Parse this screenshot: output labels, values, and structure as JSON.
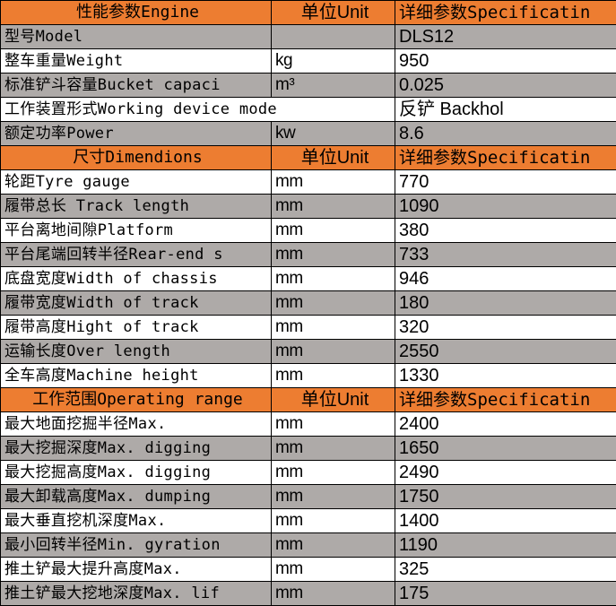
{
  "colors": {
    "header": "#ED7D31",
    "grey_row": "#AEAAA8",
    "white_row": "#FFFFFF"
  },
  "sections": [
    {
      "header": [
        "性能参数Engine",
        "单位Unit",
        "详细参数Specificatin"
      ],
      "rows": [
        {
          "label": "型号Model",
          "unit": "",
          "value": "DLS12",
          "shade": "grey"
        },
        {
          "label": "整车重量Weight",
          "unit": "kg",
          "value": "950",
          "shade": "white"
        },
        {
          "label": "标准铲斗容量Bucket capaci",
          "unit": "m³",
          "value": "0.025",
          "shade": "grey"
        },
        {
          "label": "工作装置形式Working device mode",
          "unit": "",
          "value": "反铲 Backhol",
          "shade": "white",
          "span": true
        },
        {
          "label": "额定功率Power",
          "unit": "kw",
          "value": "8.6",
          "shade": "grey"
        }
      ]
    },
    {
      "header": [
        "尺寸Dimendions",
        "单位Unit",
        "详细参数Specificatin"
      ],
      "rows": [
        {
          "label": "轮距Tyre gauge",
          "unit": "mm",
          "value": "770",
          "shade": "white"
        },
        {
          "label": "履带总长 Track length",
          "unit": "mm",
          "value": "1090",
          "shade": "grey"
        },
        {
          "label": "平台离地间隙Platform",
          "unit": "mm",
          "value": "380",
          "shade": "white"
        },
        {
          "label": "平台尾端回转半径Rear-end s",
          "unit": "mm",
          "value": "733",
          "shade": "grey"
        },
        {
          "label": "底盘宽度Width of chassis",
          "unit": "mm",
          "value": "946",
          "shade": "white"
        },
        {
          "label": "履带宽度Width of track",
          "unit": "mm",
          "value": "180",
          "shade": "grey"
        },
        {
          "label": "履带高度Hight of track",
          "unit": "mm",
          "value": "320",
          "shade": "white"
        },
        {
          "label": "运输长度Over length",
          "unit": "mm",
          "value": "2550",
          "shade": "grey"
        },
        {
          "label": "全车高度Machine height",
          "unit": "mm",
          "value": "1330",
          "shade": "white"
        }
      ]
    },
    {
      "header": [
        "工作范围Operating range",
        "单位Unit",
        "详细参数Specificatin"
      ],
      "rows": [
        {
          "label": "最大地面挖掘半径Max.",
          "unit": "mm",
          "value": "2400",
          "shade": "white"
        },
        {
          "label": "最大挖掘深度Max. digging",
          "unit": "mm",
          "value": "1650",
          "shade": "grey"
        },
        {
          "label": "最大挖掘高度Max. digging",
          "unit": "mm",
          "value": "2490",
          "shade": "white"
        },
        {
          "label": "最大卸载高度Max. dumping",
          "unit": "mm",
          "value": "1750",
          "shade": "grey"
        },
        {
          "label": "最大垂直挖机深度Max.",
          "unit": "mm",
          "value": "1400",
          "shade": "white"
        },
        {
          "label": "最小回转半径Min. gyration",
          "unit": "mm",
          "value": "1190",
          "shade": "grey"
        },
        {
          "label": "推土铲最大提升高度Max.",
          "unit": "mm",
          "value": "325",
          "shade": "white"
        },
        {
          "label": "推土铲最大挖地深度Max. lif",
          "unit": "mm",
          "value": "175",
          "shade": "grey"
        }
      ]
    }
  ]
}
